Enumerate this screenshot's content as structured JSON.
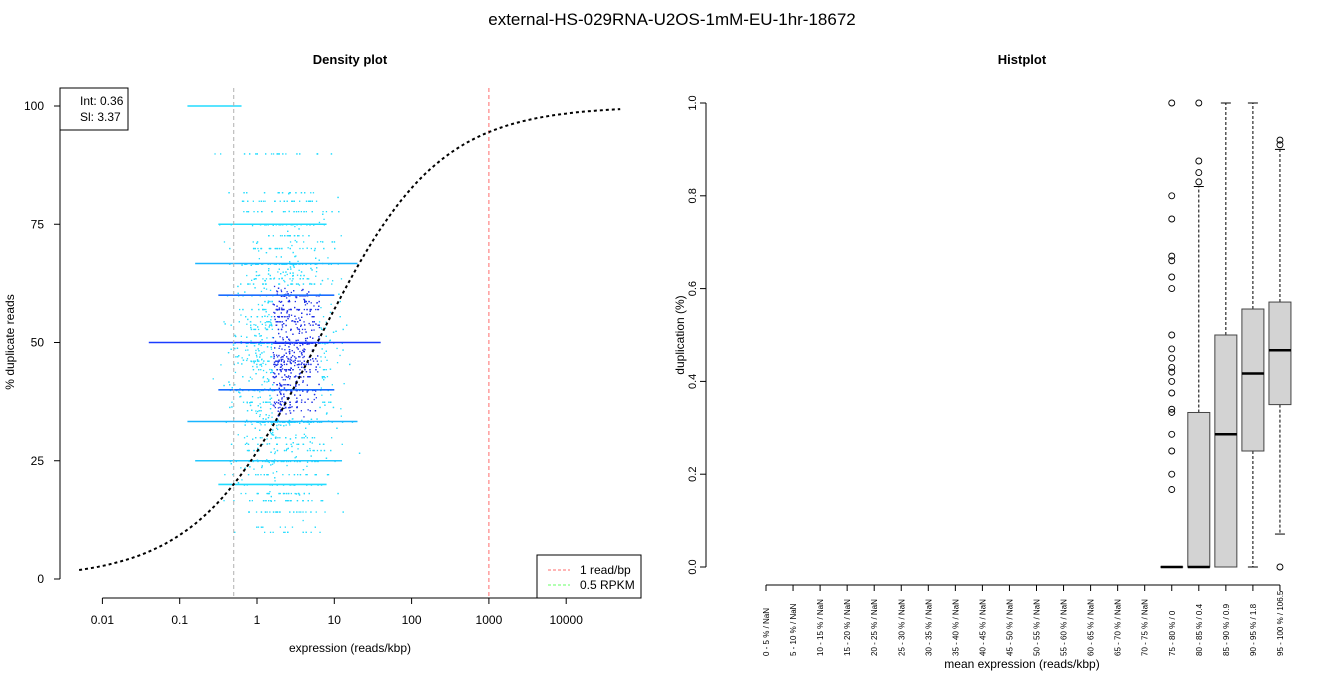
{
  "title": "external-HS-029RNA-U2OS-1mM-EU-1hr-18672",
  "chart_data": [
    {
      "type": "scatter",
      "title": "Density plot",
      "xlabel": "expression (reads/kbp)",
      "ylabel": "% duplicate reads",
      "xscale": "log",
      "xlim": [
        0.005,
        60000
      ],
      "ylim": [
        0,
        100
      ],
      "xticks": [
        0.01,
        0.1,
        1,
        10,
        100,
        1000,
        10000
      ],
      "xtick_labels": [
        "0.01",
        "0.1",
        "1",
        "10",
        "100",
        "1000",
        "10000"
      ],
      "yticks": [
        0,
        25,
        50,
        75,
        100
      ],
      "ytick_labels": [
        "0",
        "25",
        "50",
        "75",
        "100"
      ],
      "fit": {
        "int_label": "Int: 0.36",
        "sl_label": "Sl: 3.37",
        "midpoint_log10": 0.78,
        "steepness": 1.28
      },
      "vlines": [
        {
          "x": 1000,
          "label": "1 read/bp",
          "color": "#ff6b6b"
        },
        {
          "x": 0.5,
          "label": "0.5 RPKM",
          "color": "#66ff66"
        }
      ],
      "legend_position": "bottom-right",
      "colors": {
        "low": "#00e5ff",
        "high": "#0000ff"
      }
    },
    {
      "type": "box",
      "title": "Histplot",
      "xlabel": "mean expression (reads/kbp)",
      "ylabel": "duplication (%)",
      "ylim": [
        0,
        1
      ],
      "yticks": [
        0.0,
        0.2,
        0.4,
        0.6,
        0.8,
        1.0
      ],
      "ytick_labels": [
        "0.0",
        "0.2",
        "0.4",
        "0.6",
        "0.8",
        "1.0"
      ],
      "categories": [
        "0 - 5 % / NaN",
        "5 - 10 % / NaN",
        "10 - 15 % / NaN",
        "15 - 20 % / NaN",
        "20 - 25 % / NaN",
        "25 - 30 % / NaN",
        "30 - 35 % / NaN",
        "35 - 40 % / NaN",
        "40 - 45 % / NaN",
        "45 - 50 % / NaN",
        "50 - 55 % / NaN",
        "55 - 60 % / NaN",
        "60 - 65 % / NaN",
        "65 - 70 % / NaN",
        "70 - 75 % / NaN",
        "75 - 80 % / 0",
        "80 - 85 % / 0.4",
        "85 - 90 % / 0.9",
        "90 - 95 % / 1.8",
        "95 - 100 % / 106.5"
      ],
      "boxes": [
        null,
        null,
        null,
        null,
        null,
        null,
        null,
        null,
        null,
        null,
        null,
        null,
        null,
        null,
        null,
        {
          "min": 0,
          "q1": 0,
          "median": 0,
          "q3": 0,
          "max": 0,
          "outliers": [
            1.0,
            0.8,
            0.75,
            0.67,
            0.66,
            0.625,
            0.6,
            0.5,
            0.47,
            0.45,
            0.43,
            0.42,
            0.4,
            0.375,
            0.34,
            0.333,
            0.286,
            0.25,
            0.2,
            0.167
          ]
        },
        {
          "min": 0,
          "q1": 0,
          "median": 0,
          "q3": 0.333,
          "max": 0.82,
          "outliers": [
            0.83,
            0.85,
            0.875,
            1.0
          ]
        },
        {
          "min": 0,
          "q1": 0,
          "median": 0.286,
          "q3": 0.5,
          "max": 1.0,
          "outliers": []
        },
        {
          "min": 0,
          "q1": 0.25,
          "median": 0.417,
          "q3": 0.556,
          "max": 1.0,
          "outliers": []
        },
        {
          "min": 0.071,
          "q1": 0.35,
          "median": 0.467,
          "q3": 0.571,
          "max": 0.9,
          "outliers": [
            0.91,
            0.92,
            0.0
          ]
        }
      ]
    }
  ]
}
